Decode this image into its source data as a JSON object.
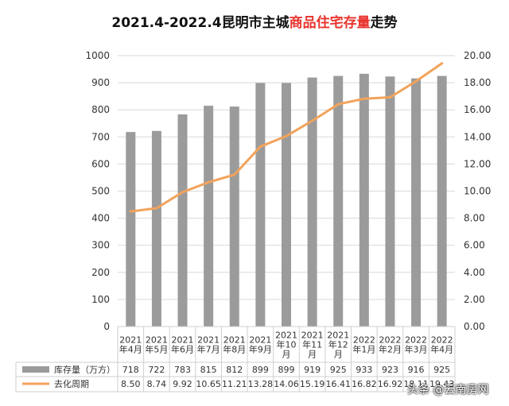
{
  "title": {
    "prefix": "2021.4-2022.4昆明市主城",
    "highlight": "商品住宅存量",
    "suffix": "走势"
  },
  "watermark": "头条 @云南房网",
  "colors": {
    "bar": "#9b9b9b",
    "line": "#f2a35b",
    "highlight": "#e8332c",
    "grid": "#d9d9d9"
  },
  "chart_data": {
    "type": "bar",
    "categories": [
      "2021\n年4月",
      "2021\n年5月",
      "2021\n年6月",
      "2021\n年7月",
      "2021\n年8月",
      "2021\n年9月",
      "2021\n年10\n月",
      "2021\n年11\n月",
      "2021\n年12\n月",
      "2022\n年1月",
      "2022\n年2月",
      "2022\n年3月",
      "2022\n年4月"
    ],
    "series": [
      {
        "name": "库存量（万方）",
        "type": "bar",
        "axis": "left",
        "values": [
          718,
          722,
          783,
          815,
          812,
          899,
          899,
          919,
          925,
          933,
          923,
          916,
          925
        ]
      },
      {
        "name": "去化周期",
        "type": "line",
        "axis": "right",
        "values": [
          8.5,
          8.74,
          9.92,
          10.65,
          11.21,
          13.28,
          14.06,
          15.19,
          16.41,
          16.82,
          16.92,
          18.11,
          19.43
        ]
      }
    ],
    "table_text": {
      "库存量（万方）": [
        "718",
        "722",
        "783",
        "815",
        "812",
        "899",
        "899",
        "919",
        "925",
        "933",
        "923",
        "916",
        "925"
      ],
      "去化周期": [
        "8.50",
        "8.74",
        "9.92",
        "10.65",
        "11.21",
        "13.28",
        "14.06",
        "15.19",
        "16.41",
        "16.82",
        "16.92",
        "18.11",
        "19.43"
      ]
    },
    "ylim_left": [
      0,
      1000
    ],
    "ylim_right": [
      0,
      20
    ],
    "yticks_left": [
      "0",
      "100",
      "200",
      "300",
      "400",
      "500",
      "600",
      "700",
      "800",
      "900",
      "1000"
    ],
    "yticks_right": [
      "0.00",
      "2.00",
      "4.00",
      "6.00",
      "8.00",
      "10.00",
      "12.00",
      "14.00",
      "16.00",
      "18.00",
      "20.00"
    ],
    "grid": true,
    "legend": "bottom data table"
  }
}
